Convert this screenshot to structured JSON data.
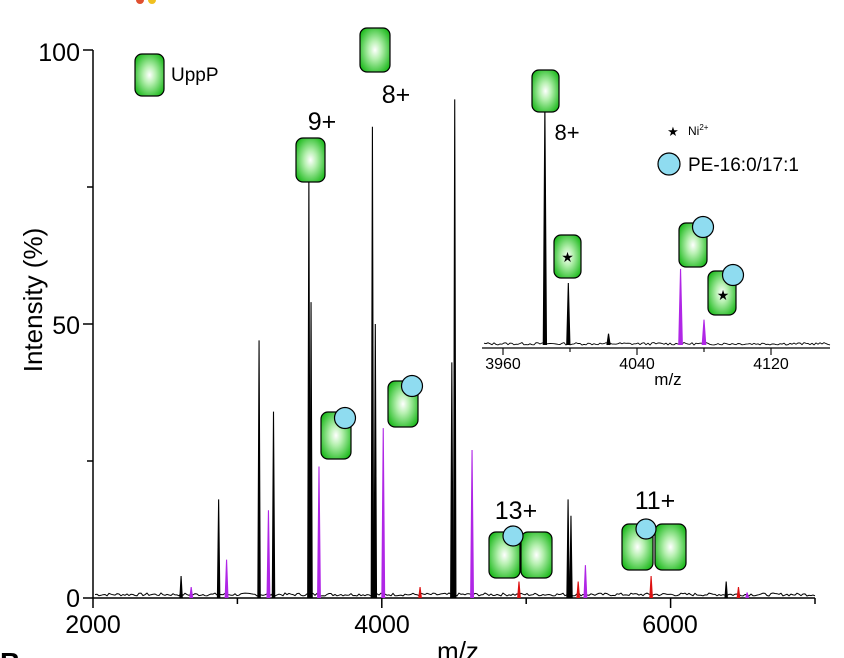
{
  "chart_data": [
    {
      "type": "line",
      "panel": "main",
      "xlabel": "m/z",
      "ylabel": "Intensity (%)",
      "xlim": [
        2000,
        7000
      ],
      "ylim": [
        0,
        100
      ],
      "xticks": [
        "2000",
        "4000",
        "6000"
      ],
      "yticks": [
        "0",
        "50",
        "100"
      ],
      "peaks_apo": [
        {
          "mz": 2610,
          "intensity": 4
        },
        {
          "mz": 2870,
          "intensity": 18
        },
        {
          "mz": 3150,
          "intensity": 47
        },
        {
          "mz": 3250,
          "intensity": 34
        },
        {
          "mz": 3495,
          "intensity": 77
        },
        {
          "mz": 3510,
          "intensity": 54
        },
        {
          "mz": 3935,
          "intensity": 86
        },
        {
          "mz": 3955,
          "intensity": 50
        },
        {
          "mz": 4505,
          "intensity": 91
        },
        {
          "mz": 4485,
          "intensity": 43
        },
        {
          "mz": 5290,
          "intensity": 18
        },
        {
          "mz": 5310,
          "intensity": 15
        },
        {
          "mz": 6385,
          "intensity": 3
        }
      ],
      "peaks_lipid": [
        {
          "mz": 2680,
          "intensity": 2
        },
        {
          "mz": 2925,
          "intensity": 7
        },
        {
          "mz": 3215,
          "intensity": 16
        },
        {
          "mz": 3565,
          "intensity": 24
        },
        {
          "mz": 4010,
          "intensity": 31
        },
        {
          "mz": 4625,
          "intensity": 27
        },
        {
          "mz": 5410,
          "intensity": 6
        },
        {
          "mz": 6530,
          "intensity": 1
        }
      ],
      "peaks_minor": [
        {
          "mz": 4265,
          "intensity": 2
        },
        {
          "mz": 4950,
          "intensity": 3
        },
        {
          "mz": 5360,
          "intensity": 3
        },
        {
          "mz": 5865,
          "intensity": 4
        },
        {
          "mz": 6470,
          "intensity": 2
        }
      ],
      "charge_labels": [
        {
          "text": "9+",
          "mz": 3435,
          "intensity": 87
        },
        {
          "text": "8+",
          "mz": 4060,
          "intensity": 99
        },
        {
          "text": "13+",
          "mz": 4945,
          "intensity": 29
        },
        {
          "text": "11+",
          "mz": 5905,
          "intensity": 33
        }
      ],
      "legend": {
        "label": "UppP"
      },
      "colors": {
        "apo": "#000000",
        "lipid": "#b026e6",
        "minor": "#dd1111",
        "protein": "#2bc72b",
        "lipid_icon": "#8fdcf0"
      }
    },
    {
      "type": "line",
      "panel": "inset",
      "xlabel": "m/z",
      "xlim": [
        3955,
        4140
      ],
      "xticks": [
        "3960",
        "4040",
        "4120"
      ],
      "peaks_apo": [
        {
          "mz": 3985,
          "intensity": 85
        },
        {
          "mz": 3999,
          "intensity": 22
        },
        {
          "mz": 4023,
          "intensity": 4
        }
      ],
      "peaks_lipid": [
        {
          "mz": 4066,
          "intensity": 27
        },
        {
          "mz": 4080,
          "intensity": 9
        }
      ],
      "charge_label": "8+",
      "legend": [
        {
          "label": "Ni",
          "superscript": "2+",
          "symbol": "star"
        },
        {
          "label": "PE-16:0/17:1",
          "symbol": "circle"
        }
      ]
    }
  ]
}
